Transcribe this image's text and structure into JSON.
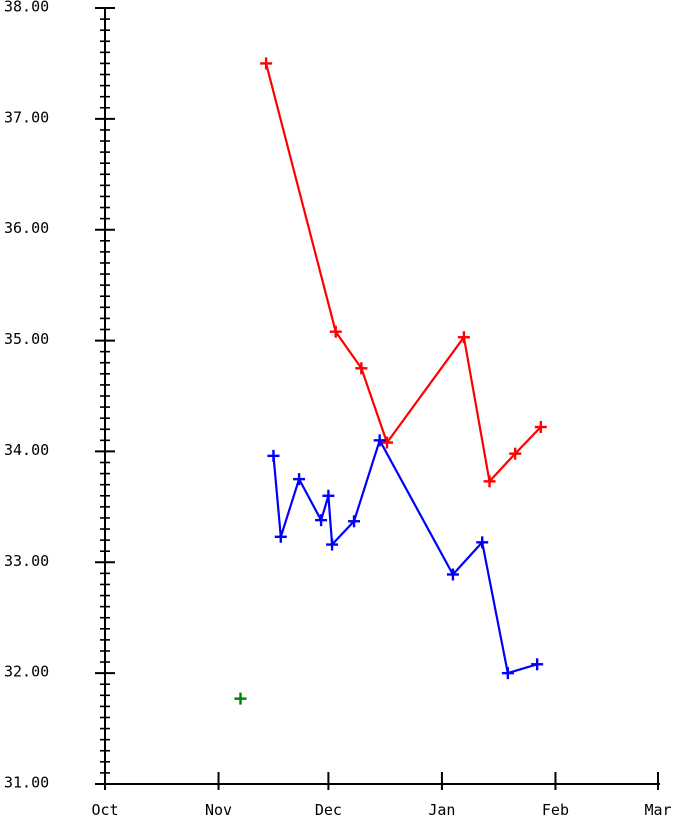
{
  "chart_data": {
    "type": "line",
    "title": "",
    "xlabel": "",
    "ylabel": "",
    "x_axis": {
      "kind": "date",
      "range": [
        "2013-10-01",
        "2014-03-01"
      ],
      "tick_labels": [
        "Oct",
        "Nov",
        "Dec",
        "Jan",
        "Feb",
        "Mar"
      ],
      "tick_dates": [
        "2013-10-01",
        "2013-11-01",
        "2013-12-01",
        "2014-01-01",
        "2014-02-01",
        "2014-03-01"
      ]
    },
    "y_axis": {
      "range": [
        31.0,
        38.0
      ],
      "tick_values": [
        31.0,
        32.0,
        33.0,
        34.0,
        35.0,
        36.0,
        37.0,
        38.0
      ],
      "tick_labels": [
        "31.00",
        "32.00",
        "33.00",
        "34.00",
        "35.00",
        "36.00",
        "37.00",
        "38.00"
      ],
      "minor_step": 0.1
    },
    "grid": false,
    "legend": "none",
    "series": [
      {
        "color": "#ff0000",
        "line": true,
        "marker": "plus",
        "points": [
          {
            "x": "2013-11-14",
            "y": 37.5
          },
          {
            "x": "2013-12-03",
            "y": 35.08
          },
          {
            "x": "2013-12-10",
            "y": 34.75
          },
          {
            "x": "2013-12-17",
            "y": 34.08
          },
          {
            "x": "2014-01-07",
            "y": 35.03
          },
          {
            "x": "2014-01-14",
            "y": 33.73
          },
          {
            "x": "2014-01-21",
            "y": 33.98
          },
          {
            "x": "2014-01-28",
            "y": 34.22
          }
        ]
      },
      {
        "color": "#0000ff",
        "line": true,
        "marker": "plus",
        "points": [
          {
            "x": "2013-11-16",
            "y": 33.96
          },
          {
            "x": "2013-11-18",
            "y": 33.23
          },
          {
            "x": "2013-11-23",
            "y": 33.75
          },
          {
            "x": "2013-11-29",
            "y": 33.38
          },
          {
            "x": "2013-12-01",
            "y": 33.6
          },
          {
            "x": "2013-12-02",
            "y": 33.16
          },
          {
            "x": "2013-12-08",
            "y": 33.37
          },
          {
            "x": "2013-12-15",
            "y": 34.1
          },
          {
            "x": "2014-01-04",
            "y": 32.89
          },
          {
            "x": "2014-01-12",
            "y": 33.18
          },
          {
            "x": "2014-01-19",
            "y": 32.0
          },
          {
            "x": "2014-01-27",
            "y": 32.08
          }
        ]
      },
      {
        "color": "#008000",
        "line": false,
        "marker": "plus",
        "points": [
          {
            "x": "2013-11-07",
            "y": 31.77
          }
        ]
      }
    ]
  }
}
